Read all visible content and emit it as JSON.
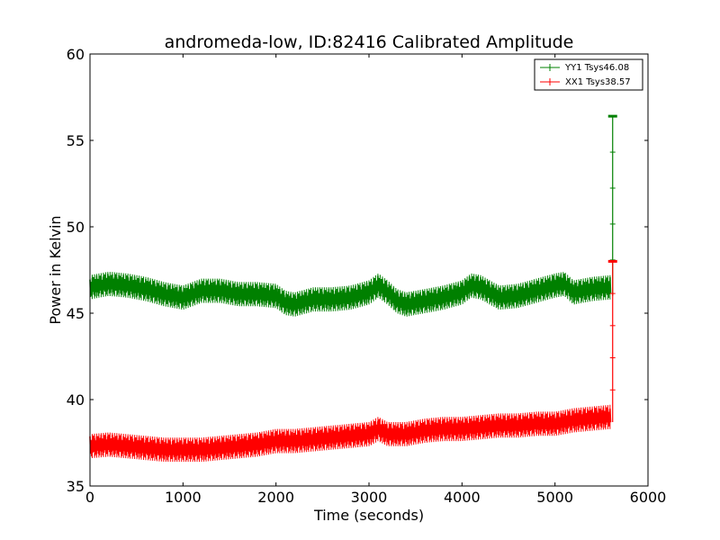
{
  "chart_data": {
    "type": "line",
    "title": "andromeda-low, ID:82416 Calibrated Amplitude",
    "xlabel": "Time (seconds)",
    "ylabel": "Power in Kelvin",
    "xlim": [
      0,
      6000
    ],
    "ylim": [
      35,
      60
    ],
    "xticks": [
      0,
      1000,
      2000,
      3000,
      4000,
      5000,
      6000
    ],
    "yticks": [
      35,
      40,
      45,
      50,
      55,
      60
    ],
    "xtick_labels": [
      "0",
      "1000",
      "2000",
      "3000",
      "4000",
      "5000",
      "6000"
    ],
    "ytick_labels": [
      "35",
      "40",
      "45",
      "50",
      "55",
      "60"
    ],
    "grid": false,
    "legend_position": "top-right",
    "series": [
      {
        "name": "YY1 Tsys46.08",
        "color": "#008000",
        "band_halfwidth": 0.45,
        "x": [
          0,
          200,
          400,
          600,
          800,
          1000,
          1200,
          1400,
          1600,
          1800,
          2000,
          2100,
          2200,
          2400,
          2600,
          2800,
          3000,
          3100,
          3200,
          3300,
          3400,
          3600,
          3800,
          4000,
          4100,
          4200,
          4400,
          4600,
          4800,
          5000,
          5100,
          5200,
          5400,
          5600
        ],
        "y": [
          46.5,
          46.7,
          46.6,
          46.4,
          46.1,
          45.9,
          46.3,
          46.3,
          46.1,
          46.1,
          46.0,
          45.6,
          45.5,
          45.8,
          45.8,
          45.9,
          46.2,
          46.6,
          46.2,
          45.7,
          45.5,
          45.7,
          45.9,
          46.2,
          46.6,
          46.5,
          45.9,
          46.0,
          46.3,
          46.6,
          46.7,
          46.2,
          46.4,
          46.5
        ],
        "spike": {
          "x": 5620,
          "top": 56.4,
          "bottom": 46.0
        }
      },
      {
        "name": "XX1 Tsys38.57",
        "color": "#ff0000",
        "band_halfwidth": 0.45,
        "x": [
          0,
          200,
          400,
          600,
          800,
          1000,
          1200,
          1400,
          1600,
          1800,
          2000,
          2200,
          2400,
          2600,
          2800,
          3000,
          3100,
          3200,
          3400,
          3600,
          3800,
          4000,
          4200,
          4400,
          4600,
          4800,
          5000,
          5200,
          5400,
          5600
        ],
        "y": [
          37.3,
          37.4,
          37.3,
          37.2,
          37.1,
          37.1,
          37.1,
          37.2,
          37.3,
          37.4,
          37.6,
          37.6,
          37.7,
          37.8,
          37.9,
          38.0,
          38.3,
          38.0,
          38.0,
          38.2,
          38.3,
          38.3,
          38.4,
          38.5,
          38.5,
          38.6,
          38.6,
          38.8,
          38.9,
          39.0
        ],
        "spike": {
          "x": 5620,
          "top": 48.0,
          "bottom": 38.7
        }
      }
    ]
  }
}
